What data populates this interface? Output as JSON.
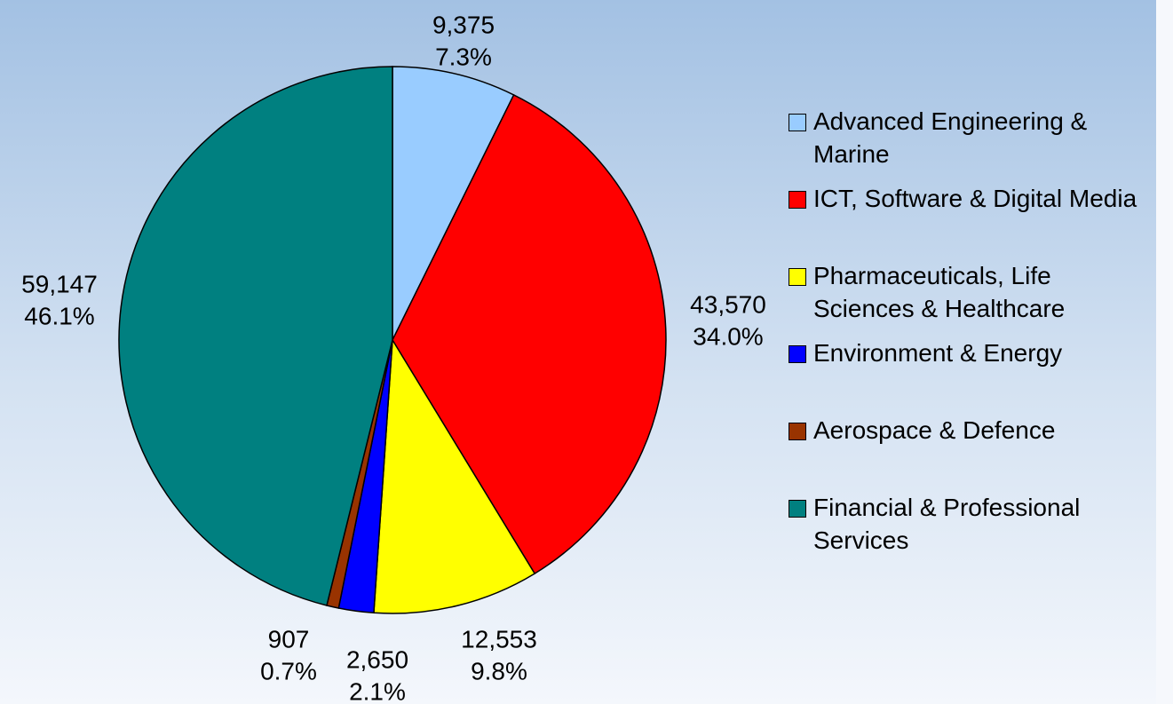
{
  "chart_data": {
    "type": "pie",
    "categories": [
      "Advanced Engineering & Marine",
      "ICT, Software & Digital Media",
      "Pharmaceuticals, Life Sciences & Healthcare",
      "Environment & Energy",
      "Aerospace & Defence",
      "Financial & Professional Services"
    ],
    "values": [
      9375,
      43570,
      12553,
      2650,
      907,
      59147
    ],
    "value_labels": [
      "9,375",
      "43,570",
      "12,553",
      "2,650",
      "907",
      "59,147"
    ],
    "percents": [
      7.3,
      34.0,
      9.8,
      2.1,
      0.7,
      46.1
    ],
    "percent_labels": [
      "7.3%",
      "34.0%",
      "9.8%",
      "2.1%",
      "0.7%",
      "46.1%"
    ],
    "colors": [
      "#99ccff",
      "#ff0000",
      "#ffff00",
      "#0000ff",
      "#993300",
      "#008080"
    ],
    "legend": "right"
  }
}
